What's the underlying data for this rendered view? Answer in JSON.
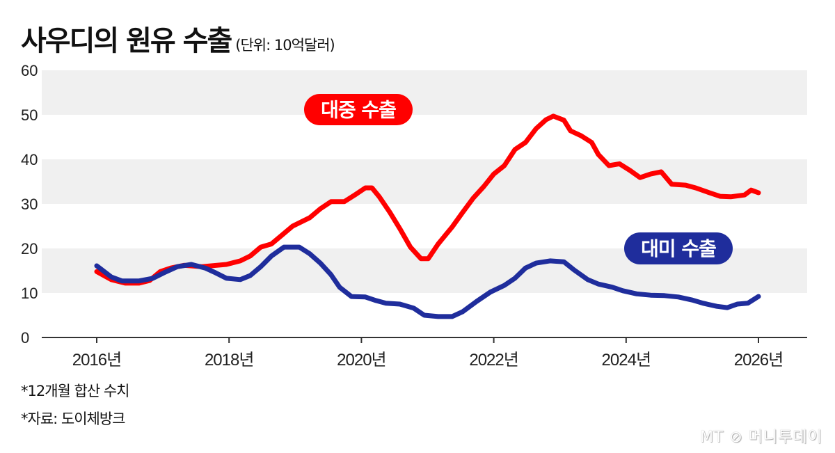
{
  "chart_data": {
    "type": "line",
    "title": "사우디의 원유 수출",
    "unit": "(단위: 10억달러)",
    "ylim": [
      0,
      60
    ],
    "yticks": [
      0,
      10,
      20,
      30,
      40,
      50,
      60
    ],
    "xlim": [
      2016,
      2026
    ],
    "xticks": [
      {
        "value": 2016,
        "label": "2016년"
      },
      {
        "value": 2018,
        "label": "2018년"
      },
      {
        "value": 2020,
        "label": "2020년"
      },
      {
        "value": 2022,
        "label": "2022년"
      },
      {
        "value": 2024,
        "label": "2024년"
      },
      {
        "value": 2026,
        "label": "2026년"
      }
    ],
    "grid": "alternating horizontal bands",
    "series": [
      {
        "name": "대중 수출",
        "color": "#ff0000",
        "points": [
          [
            2016.0,
            14.8
          ],
          [
            2016.22,
            13.0
          ],
          [
            2016.43,
            12.2
          ],
          [
            2016.64,
            12.2
          ],
          [
            2016.8,
            12.8
          ],
          [
            2016.96,
            14.8
          ],
          [
            2017.12,
            15.6
          ],
          [
            2017.32,
            16.2
          ],
          [
            2017.59,
            15.9
          ],
          [
            2017.96,
            16.4
          ],
          [
            2018.17,
            17.2
          ],
          [
            2018.32,
            18.3
          ],
          [
            2018.48,
            20.3
          ],
          [
            2018.64,
            21.0
          ],
          [
            2018.8,
            23.0
          ],
          [
            2018.96,
            25.0
          ],
          [
            2019.22,
            26.9
          ],
          [
            2019.38,
            28.9
          ],
          [
            2019.54,
            30.5
          ],
          [
            2019.74,
            30.5
          ],
          [
            2019.9,
            32.0
          ],
          [
            2020.06,
            33.6
          ],
          [
            2020.16,
            33.6
          ],
          [
            2020.27,
            31.6
          ],
          [
            2020.43,
            28.1
          ],
          [
            2020.59,
            24.2
          ],
          [
            2020.74,
            20.3
          ],
          [
            2020.9,
            17.7
          ],
          [
            2021.01,
            17.7
          ],
          [
            2021.16,
            21.0
          ],
          [
            2021.37,
            24.8
          ],
          [
            2021.53,
            28.1
          ],
          [
            2021.69,
            31.3
          ],
          [
            2021.85,
            33.9
          ],
          [
            2022.0,
            36.7
          ],
          [
            2022.16,
            38.6
          ],
          [
            2022.32,
            42.2
          ],
          [
            2022.48,
            43.8
          ],
          [
            2022.64,
            46.9
          ],
          [
            2022.79,
            48.9
          ],
          [
            2022.9,
            49.7
          ],
          [
            2023.06,
            48.8
          ],
          [
            2023.16,
            46.4
          ],
          [
            2023.32,
            45.3
          ],
          [
            2023.48,
            43.8
          ],
          [
            2023.58,
            41.1
          ],
          [
            2023.74,
            38.6
          ],
          [
            2023.9,
            39.0
          ],
          [
            2024.06,
            37.5
          ],
          [
            2024.21,
            35.9
          ],
          [
            2024.37,
            36.7
          ],
          [
            2024.53,
            37.2
          ],
          [
            2024.69,
            34.4
          ],
          [
            2024.9,
            34.2
          ],
          [
            2025.05,
            33.6
          ],
          [
            2025.26,
            32.5
          ],
          [
            2025.42,
            31.7
          ],
          [
            2025.58,
            31.6
          ],
          [
            2025.79,
            32.0
          ],
          [
            2025.89,
            33.1
          ],
          [
            2026.0,
            32.5
          ]
        ]
      },
      {
        "name": "대미 수출",
        "color": "#1f2d9c",
        "points": [
          [
            2016.0,
            16.1
          ],
          [
            2016.22,
            13.6
          ],
          [
            2016.38,
            12.7
          ],
          [
            2016.64,
            12.7
          ],
          [
            2016.85,
            13.3
          ],
          [
            2017.01,
            14.5
          ],
          [
            2017.22,
            15.9
          ],
          [
            2017.43,
            16.4
          ],
          [
            2017.64,
            15.6
          ],
          [
            2017.8,
            14.5
          ],
          [
            2017.96,
            13.3
          ],
          [
            2018.17,
            13.0
          ],
          [
            2018.32,
            13.9
          ],
          [
            2018.48,
            15.9
          ],
          [
            2018.64,
            18.3
          ],
          [
            2018.83,
            20.3
          ],
          [
            2019.06,
            20.3
          ],
          [
            2019.22,
            18.8
          ],
          [
            2019.38,
            16.7
          ],
          [
            2019.54,
            14.1
          ],
          [
            2019.67,
            11.3
          ],
          [
            2019.85,
            9.2
          ],
          [
            2020.06,
            9.1
          ],
          [
            2020.22,
            8.3
          ],
          [
            2020.37,
            7.7
          ],
          [
            2020.58,
            7.5
          ],
          [
            2020.79,
            6.6
          ],
          [
            2020.95,
            5.0
          ],
          [
            2021.16,
            4.7
          ],
          [
            2021.37,
            4.7
          ],
          [
            2021.53,
            5.8
          ],
          [
            2021.74,
            8.1
          ],
          [
            2021.95,
            10.2
          ],
          [
            2022.16,
            11.7
          ],
          [
            2022.32,
            13.3
          ],
          [
            2022.48,
            15.6
          ],
          [
            2022.64,
            16.7
          ],
          [
            2022.85,
            17.2
          ],
          [
            2023.06,
            17.0
          ],
          [
            2023.21,
            15.2
          ],
          [
            2023.42,
            13.0
          ],
          [
            2023.58,
            12.0
          ],
          [
            2023.79,
            11.3
          ],
          [
            2023.95,
            10.5
          ],
          [
            2024.16,
            9.8
          ],
          [
            2024.37,
            9.5
          ],
          [
            2024.58,
            9.4
          ],
          [
            2024.79,
            9.1
          ],
          [
            2025.0,
            8.4
          ],
          [
            2025.16,
            7.7
          ],
          [
            2025.37,
            7.0
          ],
          [
            2025.53,
            6.7
          ],
          [
            2025.68,
            7.5
          ],
          [
            2025.84,
            7.7
          ],
          [
            2026.0,
            9.2
          ]
        ]
      }
    ]
  },
  "notes": [
    "*12개월 합산 수치",
    "*자료: 도이체방크"
  ],
  "logo": "MT 머니투데이"
}
